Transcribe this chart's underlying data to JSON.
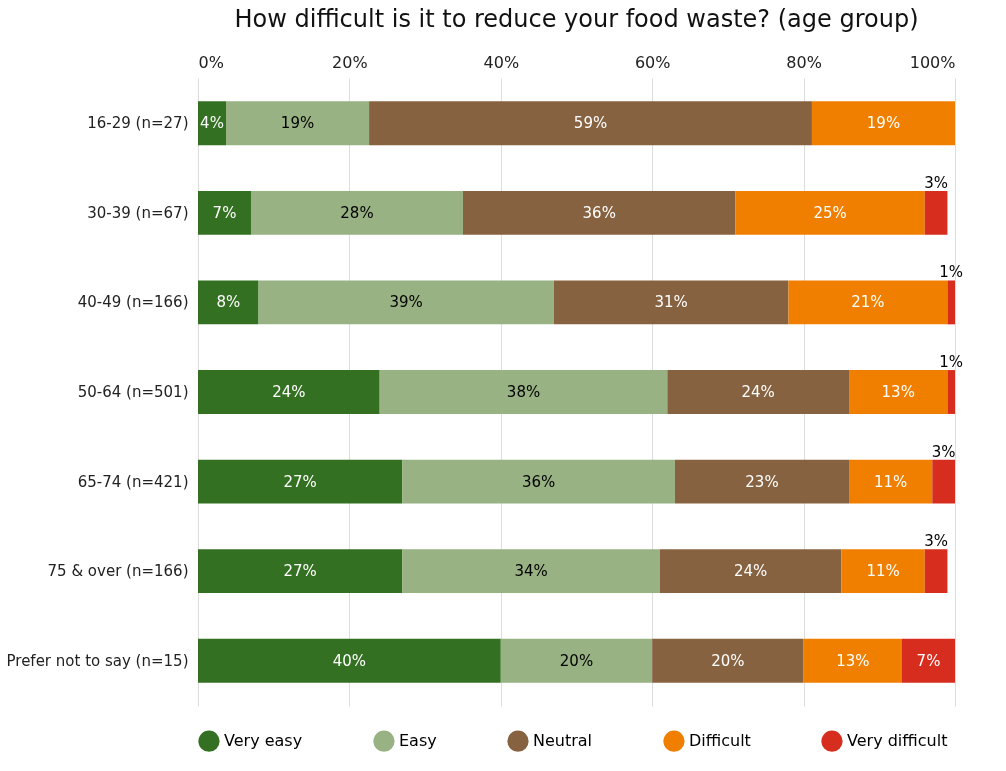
{
  "chart_data": {
    "type": "bar",
    "orientation": "horizontal",
    "stacked": true,
    "title": "How difficult is it to reduce your food waste? (age group)",
    "categories": [
      "16-29 (n=27)",
      "30-39 (n=67)",
      "40-49 (n=166)",
      "50-64 (n=501)",
      "65-74 (n=421)",
      "75 & over (n=166)",
      "Prefer not to say (n=15)"
    ],
    "series": [
      {
        "name": "Very easy",
        "color": "#337021",
        "values": [
          3.7,
          7,
          8,
          24,
          27,
          27,
          40
        ],
        "value_labels": [
          "4%",
          "7%",
          "8%",
          "24%",
          "27%",
          "27%",
          "40%"
        ]
      },
      {
        "name": "Easy",
        "color": "#98b283",
        "values": [
          18.9,
          28,
          39,
          38,
          36,
          34,
          20
        ],
        "value_labels": [
          "19%",
          "28%",
          "39%",
          "38%",
          "36%",
          "34%",
          "20%"
        ]
      },
      {
        "name": "Neutral",
        "color": "#876241",
        "values": [
          58.5,
          36,
          31,
          24,
          23,
          24,
          20
        ],
        "value_labels": [
          "59%",
          "36%",
          "31%",
          "24%",
          "23%",
          "24%",
          "20%"
        ]
      },
      {
        "name": "Difficult",
        "color": "#f07f00",
        "values": [
          18.9,
          25,
          21,
          13,
          11,
          11,
          13
        ],
        "value_labels": [
          "19%",
          "25%",
          "21%",
          "13%",
          "11%",
          "11%",
          "13%"
        ]
      },
      {
        "name": "Very difficult",
        "color": "#d62d1e",
        "values": [
          null,
          3,
          1,
          1,
          3,
          3,
          7
        ],
        "value_labels": [
          null,
          "3%",
          "1%",
          "1%",
          "3%",
          "3%",
          "7%"
        ]
      }
    ],
    "xlim": [
      0,
      100
    ],
    "xticks": [
      {
        "value": 0,
        "label": "0%"
      },
      {
        "value": 20,
        "label": "20%"
      },
      {
        "value": 40,
        "label": "40%"
      },
      {
        "value": 60,
        "label": "60%"
      },
      {
        "value": 80,
        "label": "80%"
      },
      {
        "value": 100,
        "label": "100%"
      }
    ],
    "grid": "x",
    "legend": "bottom"
  }
}
